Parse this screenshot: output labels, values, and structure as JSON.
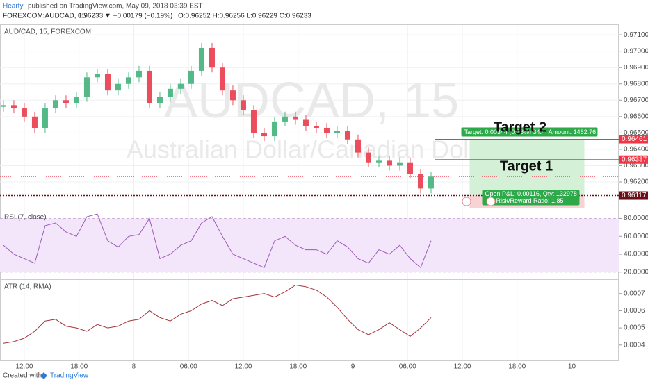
{
  "header": {
    "author": "Hearty",
    "published": "published on TradingView.com, May 09, 2018 03:39 EST",
    "symbol": "FOREXCOM:AUDCAD, 15",
    "price": "0.96233",
    "change": "▼ −0.00179 (−0.19%)",
    "ohlc": "O:0.96252 H:0.96256 L:0.96229 C:0.96233"
  },
  "chart_data": [
    {
      "type": "candlestick",
      "title": "AUD/CAD, 15, FOREXCOM",
      "watermark": "AUDCAD, 15",
      "watermark_subtitle": "Australian Dollar/Canadian Dollar",
      "up_color": "#53b987",
      "down_color": "#eb4d5c",
      "x": [
        0,
        1,
        2,
        3,
        4,
        5,
        6,
        7,
        8,
        9,
        10,
        11,
        12,
        13,
        14,
        15,
        16,
        17,
        18,
        19,
        20,
        21,
        22,
        23,
        24,
        25,
        26,
        27,
        28,
        29,
        30,
        31,
        32,
        33,
        34,
        35,
        36,
        37,
        38,
        39,
        40,
        41
      ],
      "open": [
        0.9666,
        0.9667,
        0.9665,
        0.966,
        0.9653,
        0.9665,
        0.967,
        0.9668,
        0.9672,
        0.9684,
        0.9686,
        0.9676,
        0.968,
        0.9684,
        0.9688,
        0.9668,
        0.9672,
        0.9677,
        0.968,
        0.9688,
        0.9702,
        0.969,
        0.9676,
        0.967,
        0.9664,
        0.965,
        0.9648,
        0.9657,
        0.966,
        0.9658,
        0.9654,
        0.9653,
        0.965,
        0.9651,
        0.9646,
        0.9638,
        0.9632,
        0.9633,
        0.963,
        0.9632,
        0.9625,
        0.9616
      ],
      "high": [
        0.967,
        0.967,
        0.9668,
        0.9663,
        0.9668,
        0.9673,
        0.9673,
        0.9675,
        0.9687,
        0.9689,
        0.9689,
        0.9683,
        0.9687,
        0.9691,
        0.9691,
        0.9675,
        0.968,
        0.9683,
        0.9691,
        0.9705,
        0.9705,
        0.9693,
        0.9679,
        0.9673,
        0.9667,
        0.9653,
        0.966,
        0.9663,
        0.9663,
        0.9661,
        0.9657,
        0.9656,
        0.9654,
        0.9654,
        0.9649,
        0.9641,
        0.9636,
        0.9636,
        0.9635,
        0.9635,
        0.9628,
        0.9626
      ],
      "low": [
        0.9663,
        0.9662,
        0.9657,
        0.965,
        0.965,
        0.9662,
        0.9665,
        0.9665,
        0.9669,
        0.9681,
        0.9673,
        0.9673,
        0.9677,
        0.9681,
        0.9665,
        0.9665,
        0.9669,
        0.9674,
        0.9677,
        0.9685,
        0.9687,
        0.9673,
        0.9667,
        0.9661,
        0.9647,
        0.9645,
        0.9645,
        0.9654,
        0.9655,
        0.9651,
        0.965,
        0.9647,
        0.9647,
        0.9643,
        0.9635,
        0.9629,
        0.9629,
        0.9627,
        0.9627,
        0.9622,
        0.9613,
        0.9613
      ],
      "close": [
        0.9667,
        0.9665,
        0.966,
        0.9653,
        0.9665,
        0.967,
        0.9668,
        0.9672,
        0.9684,
        0.9686,
        0.9676,
        0.968,
        0.9684,
        0.9688,
        0.9668,
        0.9672,
        0.9677,
        0.968,
        0.9688,
        0.9702,
        0.969,
        0.9676,
        0.967,
        0.9664,
        0.965,
        0.9648,
        0.9657,
        0.966,
        0.9658,
        0.9654,
        0.9653,
        0.965,
        0.9651,
        0.9646,
        0.9638,
        0.9632,
        0.9633,
        0.963,
        0.9632,
        0.9625,
        0.9616,
        0.96233
      ],
      "xlim": [
        -0.33,
        59
      ],
      "xticks": [
        {
          "value": 2,
          "label": "12:00"
        },
        {
          "value": 7.25,
          "label": "18:00"
        },
        {
          "value": 12.5,
          "label": "8"
        },
        {
          "value": 17.75,
          "label": "06:00"
        },
        {
          "value": 23,
          "label": "12:00"
        },
        {
          "value": 28.25,
          "label": "18:00"
        },
        {
          "value": 33.5,
          "label": "9"
        },
        {
          "value": 38.75,
          "label": "06:00"
        },
        {
          "value": 44,
          "label": "12:00"
        },
        {
          "value": 49.25,
          "label": "18:00"
        },
        {
          "value": 54.5,
          "label": "10"
        }
      ],
      "ylim": [
        0.9603,
        0.9716
      ],
      "yticks": [
        {
          "value": 0.971,
          "label": "0.97100"
        },
        {
          "value": 0.97,
          "label": "0.97000"
        },
        {
          "value": 0.969,
          "label": "0.96900"
        },
        {
          "value": 0.968,
          "label": "0.96800"
        },
        {
          "value": 0.967,
          "label": "0.96700"
        },
        {
          "value": 0.966,
          "label": "0.96600"
        },
        {
          "value": 0.965,
          "label": "0.96500"
        },
        {
          "value": 0.964,
          "label": "0.96400"
        },
        {
          "value": 0.963,
          "label": "0.96300"
        },
        {
          "value": 0.962,
          "label": "0.96200"
        }
      ],
      "grid": true,
      "price_lines": [
        {
          "value": 0.96461,
          "color": "#f23645"
        },
        {
          "value": 0.96337,
          "color": "#f23645"
        },
        {
          "value": 0.96117,
          "color": "#6d0f18"
        }
      ],
      "position": {
        "start": 44.7,
        "end": 55.7,
        "target": 0.96461,
        "entry": 0.96117,
        "stop": 0.9604,
        "target_label": "Target: 0.00344 (0.36%) 34.4, Amount: 1462.76",
        "pnl_label": "Open P&L: 0.00116, Qty: 132978",
        "rr_label": "Risk/Reward Ratio: 1.85"
      },
      "annotations": [
        "Target 2",
        "Target 1"
      ]
    },
    {
      "type": "line",
      "title": "RSI (7, close)",
      "color": "#9b59b6",
      "band": [
        20,
        80
      ],
      "band_color": "#f3e6fb",
      "values": [
        50,
        40,
        35,
        30,
        72,
        75,
        65,
        60,
        82,
        85,
        55,
        48,
        60,
        62,
        80,
        35,
        40,
        50,
        55,
        75,
        82,
        60,
        40,
        35,
        30,
        25,
        55,
        60,
        50,
        45,
        45,
        40,
        55,
        48,
        35,
        30,
        45,
        40,
        50,
        35,
        25,
        55
      ],
      "ylim": [
        12,
        89
      ],
      "yticks": [
        {
          "value": 80,
          "label": "80.0000"
        },
        {
          "value": 60,
          "label": "60.0000"
        },
        {
          "value": 40,
          "label": "40.0000"
        },
        {
          "value": 20,
          "label": "20.0000"
        }
      ]
    },
    {
      "type": "line",
      "title": "ATR (14, RMA)",
      "color": "#a3343c",
      "values": [
        0.00041,
        0.00042,
        0.00044,
        0.00048,
        0.00054,
        0.00055,
        0.00051,
        0.0005,
        0.00048,
        0.00052,
        0.0005,
        0.00051,
        0.00054,
        0.00055,
        0.0006,
        0.00056,
        0.00054,
        0.00058,
        0.0006,
        0.00064,
        0.00066,
        0.00063,
        0.00067,
        0.00068,
        0.00069,
        0.0007,
        0.00068,
        0.00071,
        0.00075,
        0.00074,
        0.00072,
        0.00068,
        0.00062,
        0.00055,
        0.00049,
        0.00046,
        0.00049,
        0.00053,
        0.00049,
        0.00045,
        0.0005,
        0.00056
      ],
      "ylim": [
        0.00031,
        0.00078
      ],
      "yticks": [
        0.0007,
        0.0006,
        0.0005,
        0.0004
      ]
    }
  ],
  "footer": {
    "created": "Created with",
    "brand": "TradingView"
  }
}
